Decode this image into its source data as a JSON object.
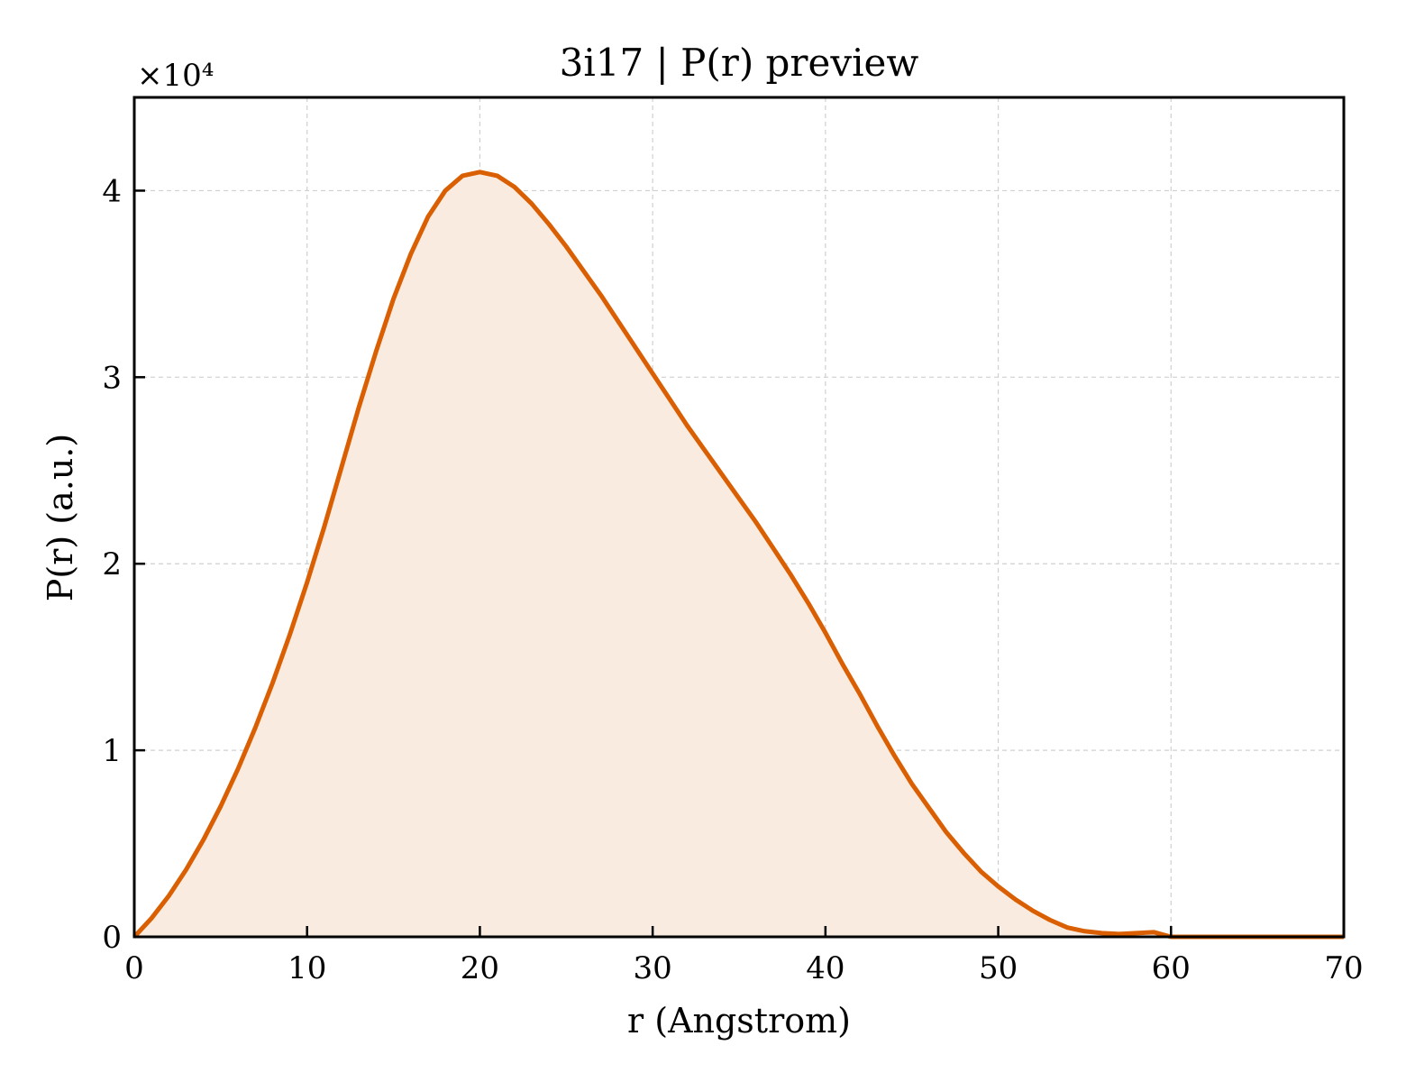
{
  "chart_data": {
    "type": "area",
    "title": "3i17 | P(r) preview",
    "xlabel": "r (Angstrom)",
    "ylabel": "P(r) (a.u.)",
    "y_multiplier_label": "×10⁴",
    "xlim": [
      0,
      70
    ],
    "ylim": [
      0,
      4.5
    ],
    "xticks": [
      0,
      10,
      20,
      30,
      40,
      50,
      60,
      70
    ],
    "yticks": [
      0,
      1,
      2,
      3,
      4
    ],
    "grid": true,
    "colors": {
      "line": "#d95f02",
      "fill": "#f9ebe0"
    },
    "series": [
      {
        "x": [
          0,
          1,
          2,
          3,
          4,
          5,
          6,
          7,
          8,
          9,
          10,
          11,
          12,
          13,
          14,
          15,
          16,
          17,
          18,
          19,
          20,
          21,
          22,
          23,
          24,
          25,
          26,
          27,
          28,
          29,
          30,
          31,
          32,
          33,
          34,
          35,
          36,
          37,
          38,
          39,
          40,
          41,
          42,
          43,
          44,
          45,
          46,
          47,
          48,
          49,
          50,
          51,
          52,
          53,
          54,
          55,
          56,
          57,
          58,
          59,
          60,
          61,
          62,
          63,
          64,
          65,
          66,
          67,
          68,
          69,
          70
        ],
        "y": [
          0.0,
          0.1,
          0.22,
          0.36,
          0.52,
          0.7,
          0.9,
          1.12,
          1.36,
          1.62,
          1.9,
          2.2,
          2.52,
          2.84,
          3.14,
          3.42,
          3.66,
          3.86,
          4.0,
          4.08,
          4.1,
          4.08,
          4.02,
          3.93,
          3.82,
          3.7,
          3.57,
          3.44,
          3.3,
          3.16,
          3.02,
          2.88,
          2.74,
          2.61,
          2.48,
          2.35,
          2.22,
          2.08,
          1.94,
          1.79,
          1.63,
          1.46,
          1.3,
          1.13,
          0.97,
          0.82,
          0.69,
          0.56,
          0.45,
          0.35,
          0.27,
          0.2,
          0.14,
          0.09,
          0.05,
          0.03,
          0.02,
          0.015,
          0.02,
          0.025,
          0.0,
          0.0,
          0.0,
          0.0,
          0.0,
          0.0,
          0.0,
          0.0,
          0.0,
          0.0,
          0.0
        ]
      }
    ]
  }
}
